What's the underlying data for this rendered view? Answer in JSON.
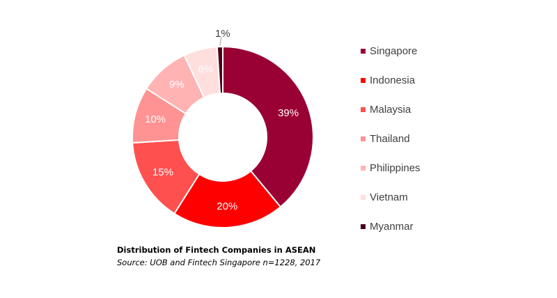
{
  "chart_data": {
    "type": "pie",
    "donut": true,
    "categories": [
      "Singapore",
      "Indonesia",
      "Malaysia",
      "Thailand",
      "Philippines",
      "Vietnam",
      "Myanmar"
    ],
    "values": [
      39,
      20,
      15,
      10,
      9,
      6,
      1
    ],
    "data_labels": [
      "39%",
      "20%",
      "15%",
      "10%",
      "9%",
      "6%",
      "1%"
    ],
    "colors": [
      "#990033",
      "#ff0000",
      "#ff5050",
      "#ff9393",
      "#ffb3b3",
      "#ffdede",
      "#4a0018"
    ],
    "label_colors": [
      "#ffffff",
      "#ffffff",
      "#ffffff",
      "#ffffff",
      "#ffffff",
      "#ffffff",
      "#404040"
    ],
    "legend_position": "right"
  },
  "caption": {
    "title": "Distribution of Fintech Companies in ASEAN",
    "source": "Source: UOB and Fintech Singapore n=1228, 2017"
  }
}
